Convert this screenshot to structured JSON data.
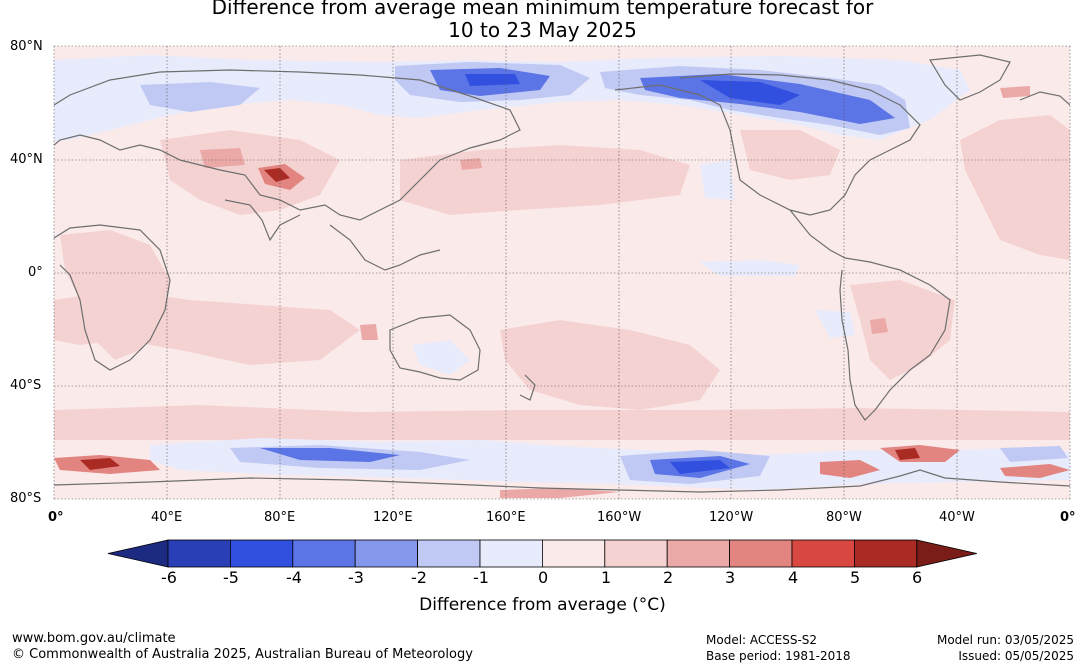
{
  "title": {
    "line1": "Difference from average mean minimum temperature forecast for",
    "line2": "10 to 23 May 2025"
  },
  "map": {
    "longitude_labels": [
      "0°",
      "40°E",
      "80°E",
      "120°E",
      "160°E",
      "160°W",
      "120°W",
      "80°W",
      "40°W",
      "0°"
    ],
    "latitude_labels": [
      "80°N",
      "40°N",
      "0°",
      "40°S",
      "80°S"
    ],
    "coastline_color": "#6e6e6e",
    "gridline_style": "dotted"
  },
  "colorbar": {
    "tick_labels": [
      "-6",
      "-5",
      "-4",
      "-3",
      "-2",
      "-1",
      "0",
      "1",
      "2",
      "3",
      "4",
      "5",
      "6"
    ],
    "colors": [
      "#1c2a82",
      "#2a3fb6",
      "#3150e0",
      "#5b74e6",
      "#8597ec",
      "#c0c8f4",
      "#e8ebfb",
      "#fbeaea",
      "#f5d2d2",
      "#eaa9a7",
      "#e28480",
      "#d84840",
      "#aa2a24",
      "#7a1c18"
    ],
    "title": "Difference from average (°C)"
  },
  "footer": {
    "website": "www.bom.gov.au/climate",
    "copyright": "© Commonwealth of Australia 2025, Australian Bureau of Meteorology",
    "model": "Model: ACCESS-S2",
    "base_period": "Base period: 1981-2018",
    "model_run": "Model run: 03/05/2025",
    "issued": "Issued: 05/05/2025"
  }
}
